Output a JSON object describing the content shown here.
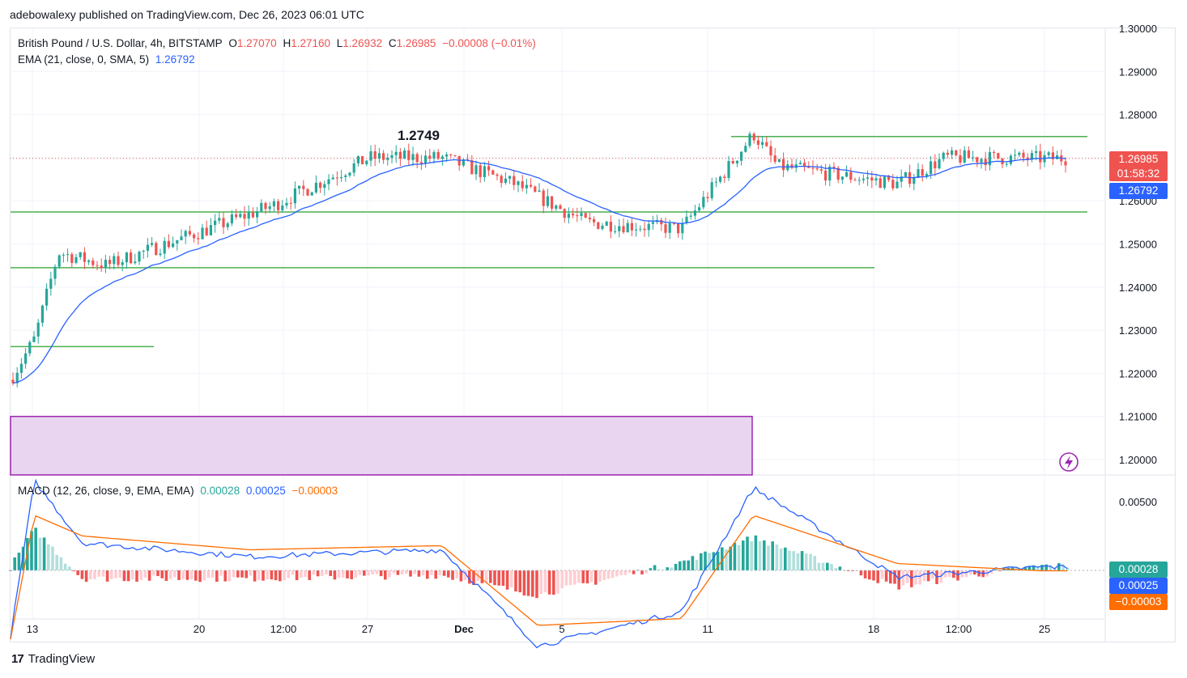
{
  "header": {
    "published_line": "adebowalexy published on TradingView.com, Dec 26, 2023 06:01 UTC"
  },
  "legend": {
    "symbol": "British Pound / U.S. Dollar, 4h, BITSTAMP",
    "o_label": "O",
    "o_value": "1.27070",
    "h_label": "H",
    "h_value": "1.27160",
    "l_label": "L",
    "l_value": "1.26932",
    "c_label": "C",
    "c_value": "1.26985",
    "change": "−0.00008 (−0.01%)",
    "ema_label": "EMA (21, close, 0, SMA, 5)",
    "ema_value": "1.26792",
    "macd_label": "MACD (12, 26, close, 9, EMA, EMA)",
    "macd_v1": "0.00028",
    "macd_v2": "0.00025",
    "macd_v3": "−0.00003"
  },
  "badges": {
    "price": "1.26985",
    "countdown": "01:58:32",
    "ema": "1.26792",
    "macd_hist": "0.00028",
    "macd_line": "0.00025",
    "macd_signal": "−0.00003"
  },
  "annotation_label": "1.2749",
  "footer": {
    "brand": "TradingView"
  },
  "colors": {
    "up": "#26a69a",
    "down": "#ef5350",
    "ema": "#2962ff",
    "signal": "#ff6d00",
    "level": "#4caf50",
    "zone_fill": "#e9d5f0",
    "zone_stroke": "#9c27b0"
  },
  "chart_data": {
    "type": "candlestick",
    "title": "British Pound / U.S. Dollar, 4h, BITSTAMP",
    "y_ticks": [
      "1.30000",
      "1.29000",
      "1.28000",
      "1.27000",
      "1.26000",
      "1.25000",
      "1.24000",
      "1.23000",
      "1.22000",
      "1.21000",
      "1.20000"
    ],
    "y_range": [
      1.2,
      1.3
    ],
    "x_ticks": [
      "13",
      "20",
      "12:00",
      "27",
      "Dec",
      "5",
      "11",
      "18",
      "12:00",
      "25"
    ],
    "macd_ticks": [
      "0.00500"
    ],
    "horizontal_levels": [
      {
        "price": 1.2262,
        "from": "Nov 13",
        "to": "Nov 19"
      },
      {
        "price": 1.2445,
        "from": "Nov 13",
        "to": "Dec 18"
      },
      {
        "price": 1.2574,
        "from": "Nov 13",
        "to": "Dec 27"
      },
      {
        "price": 1.2749,
        "from": "Dec 13",
        "to": "Dec 27"
      }
    ],
    "demand_zone": {
      "top": 1.21,
      "bottom": 1.1965,
      "from": "Nov 13",
      "to": "Dec 13"
    },
    "last_price": 1.26985,
    "ema_last": 1.26792,
    "ohlc_anchors": [
      {
        "t": "Nov 13",
        "price": 1.2185
      },
      {
        "t": "Nov 14",
        "price": 1.228
      },
      {
        "t": "Nov 15",
        "price": 1.248
      },
      {
        "t": "Nov 17",
        "price": 1.245
      },
      {
        "t": "Nov 21",
        "price": 1.253
      },
      {
        "t": "Nov 24",
        "price": 1.259
      },
      {
        "t": "Nov 28",
        "price": 1.27
      },
      {
        "t": "Dec 1",
        "price": 1.27
      },
      {
        "t": "Dec 4",
        "price": 1.264
      },
      {
        "t": "Dec 7",
        "price": 1.255
      },
      {
        "t": "Dec 11",
        "price": 1.2535
      },
      {
        "t": "Dec 14",
        "price": 1.2755
      },
      {
        "t": "Dec 15",
        "price": 1.268
      },
      {
        "t": "Dec 20",
        "price": 1.264
      },
      {
        "t": "Dec 22",
        "price": 1.27
      },
      {
        "t": "Dec 26",
        "price": 1.26985
      }
    ],
    "macd_anchors": [
      {
        "t": "Nov 13",
        "macd": -0.0048,
        "signal": -0.005
      },
      {
        "t": "Nov 14",
        "macd": 0.0065,
        "signal": 0.004
      },
      {
        "t": "Nov 16",
        "macd": 0.002,
        "signal": 0.0025
      },
      {
        "t": "Nov 23",
        "macd": 0.001,
        "signal": 0.0015
      },
      {
        "t": "Dec 1",
        "macd": 0.0015,
        "signal": 0.0018
      },
      {
        "t": "Dec 5",
        "macd": -0.0055,
        "signal": -0.004
      },
      {
        "t": "Dec 11",
        "macd": -0.003,
        "signal": -0.0035
      },
      {
        "t": "Dec 14",
        "macd": 0.006,
        "signal": 0.004
      },
      {
        "t": "Dec 20",
        "macd": -0.0005,
        "signal": 0.0005
      },
      {
        "t": "Dec 26",
        "macd": 0.00025,
        "signal": -3e-05
      }
    ]
  }
}
